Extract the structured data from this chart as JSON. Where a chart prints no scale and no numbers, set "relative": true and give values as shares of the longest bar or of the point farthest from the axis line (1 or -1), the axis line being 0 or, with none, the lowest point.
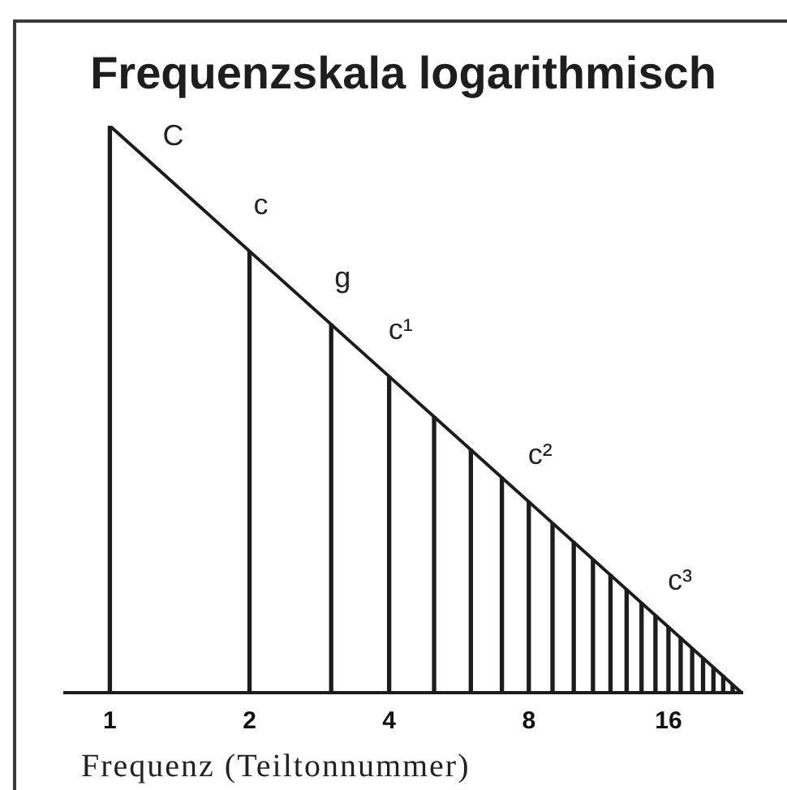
{
  "chart_data": {
    "type": "bar",
    "title": "Frequenzskala logarithmisch",
    "xlabel": "Frequenz (Teiltonnummer)",
    "log": "x",
    "relative": true,
    "xlim": [
      0.8,
      23
    ],
    "xticks": [
      1,
      2,
      4,
      8,
      16
    ],
    "series": [
      {
        "color": "#1c1c1c",
        "x": [
          1,
          2,
          3,
          4,
          5,
          6,
          7,
          8,
          9,
          10,
          11,
          12,
          13,
          14,
          15,
          16,
          17,
          18,
          19,
          20,
          21,
          22
        ],
        "values": [
          1,
          0.779,
          0.65,
          0.558,
          0.487,
          0.429,
          0.38,
          0.337,
          0.299,
          0.266,
          0.235,
          0.208,
          0.182,
          0.158,
          0.136,
          0.116,
          0.097,
          0.078,
          0.061,
          0.045,
          0.03,
          0.014
        ]
      },
      {
        "type": "line",
        "color": "#1c1c1c",
        "x": [
          1,
          23
        ],
        "values": [
          1,
          0
        ]
      }
    ],
    "annotations": [
      {
        "text": "C",
        "x": 1,
        "y": 1
      },
      {
        "text": "c",
        "x": 2,
        "y": 0.779
      },
      {
        "text": "g",
        "x": 3,
        "y": 0.65
      },
      {
        "text": "c¹",
        "x": 4,
        "y": 0.558
      },
      {
        "text": "c²",
        "x": 8,
        "y": 0.337
      },
      {
        "text": "c³",
        "x": 16,
        "y": 0.116
      }
    ]
  }
}
